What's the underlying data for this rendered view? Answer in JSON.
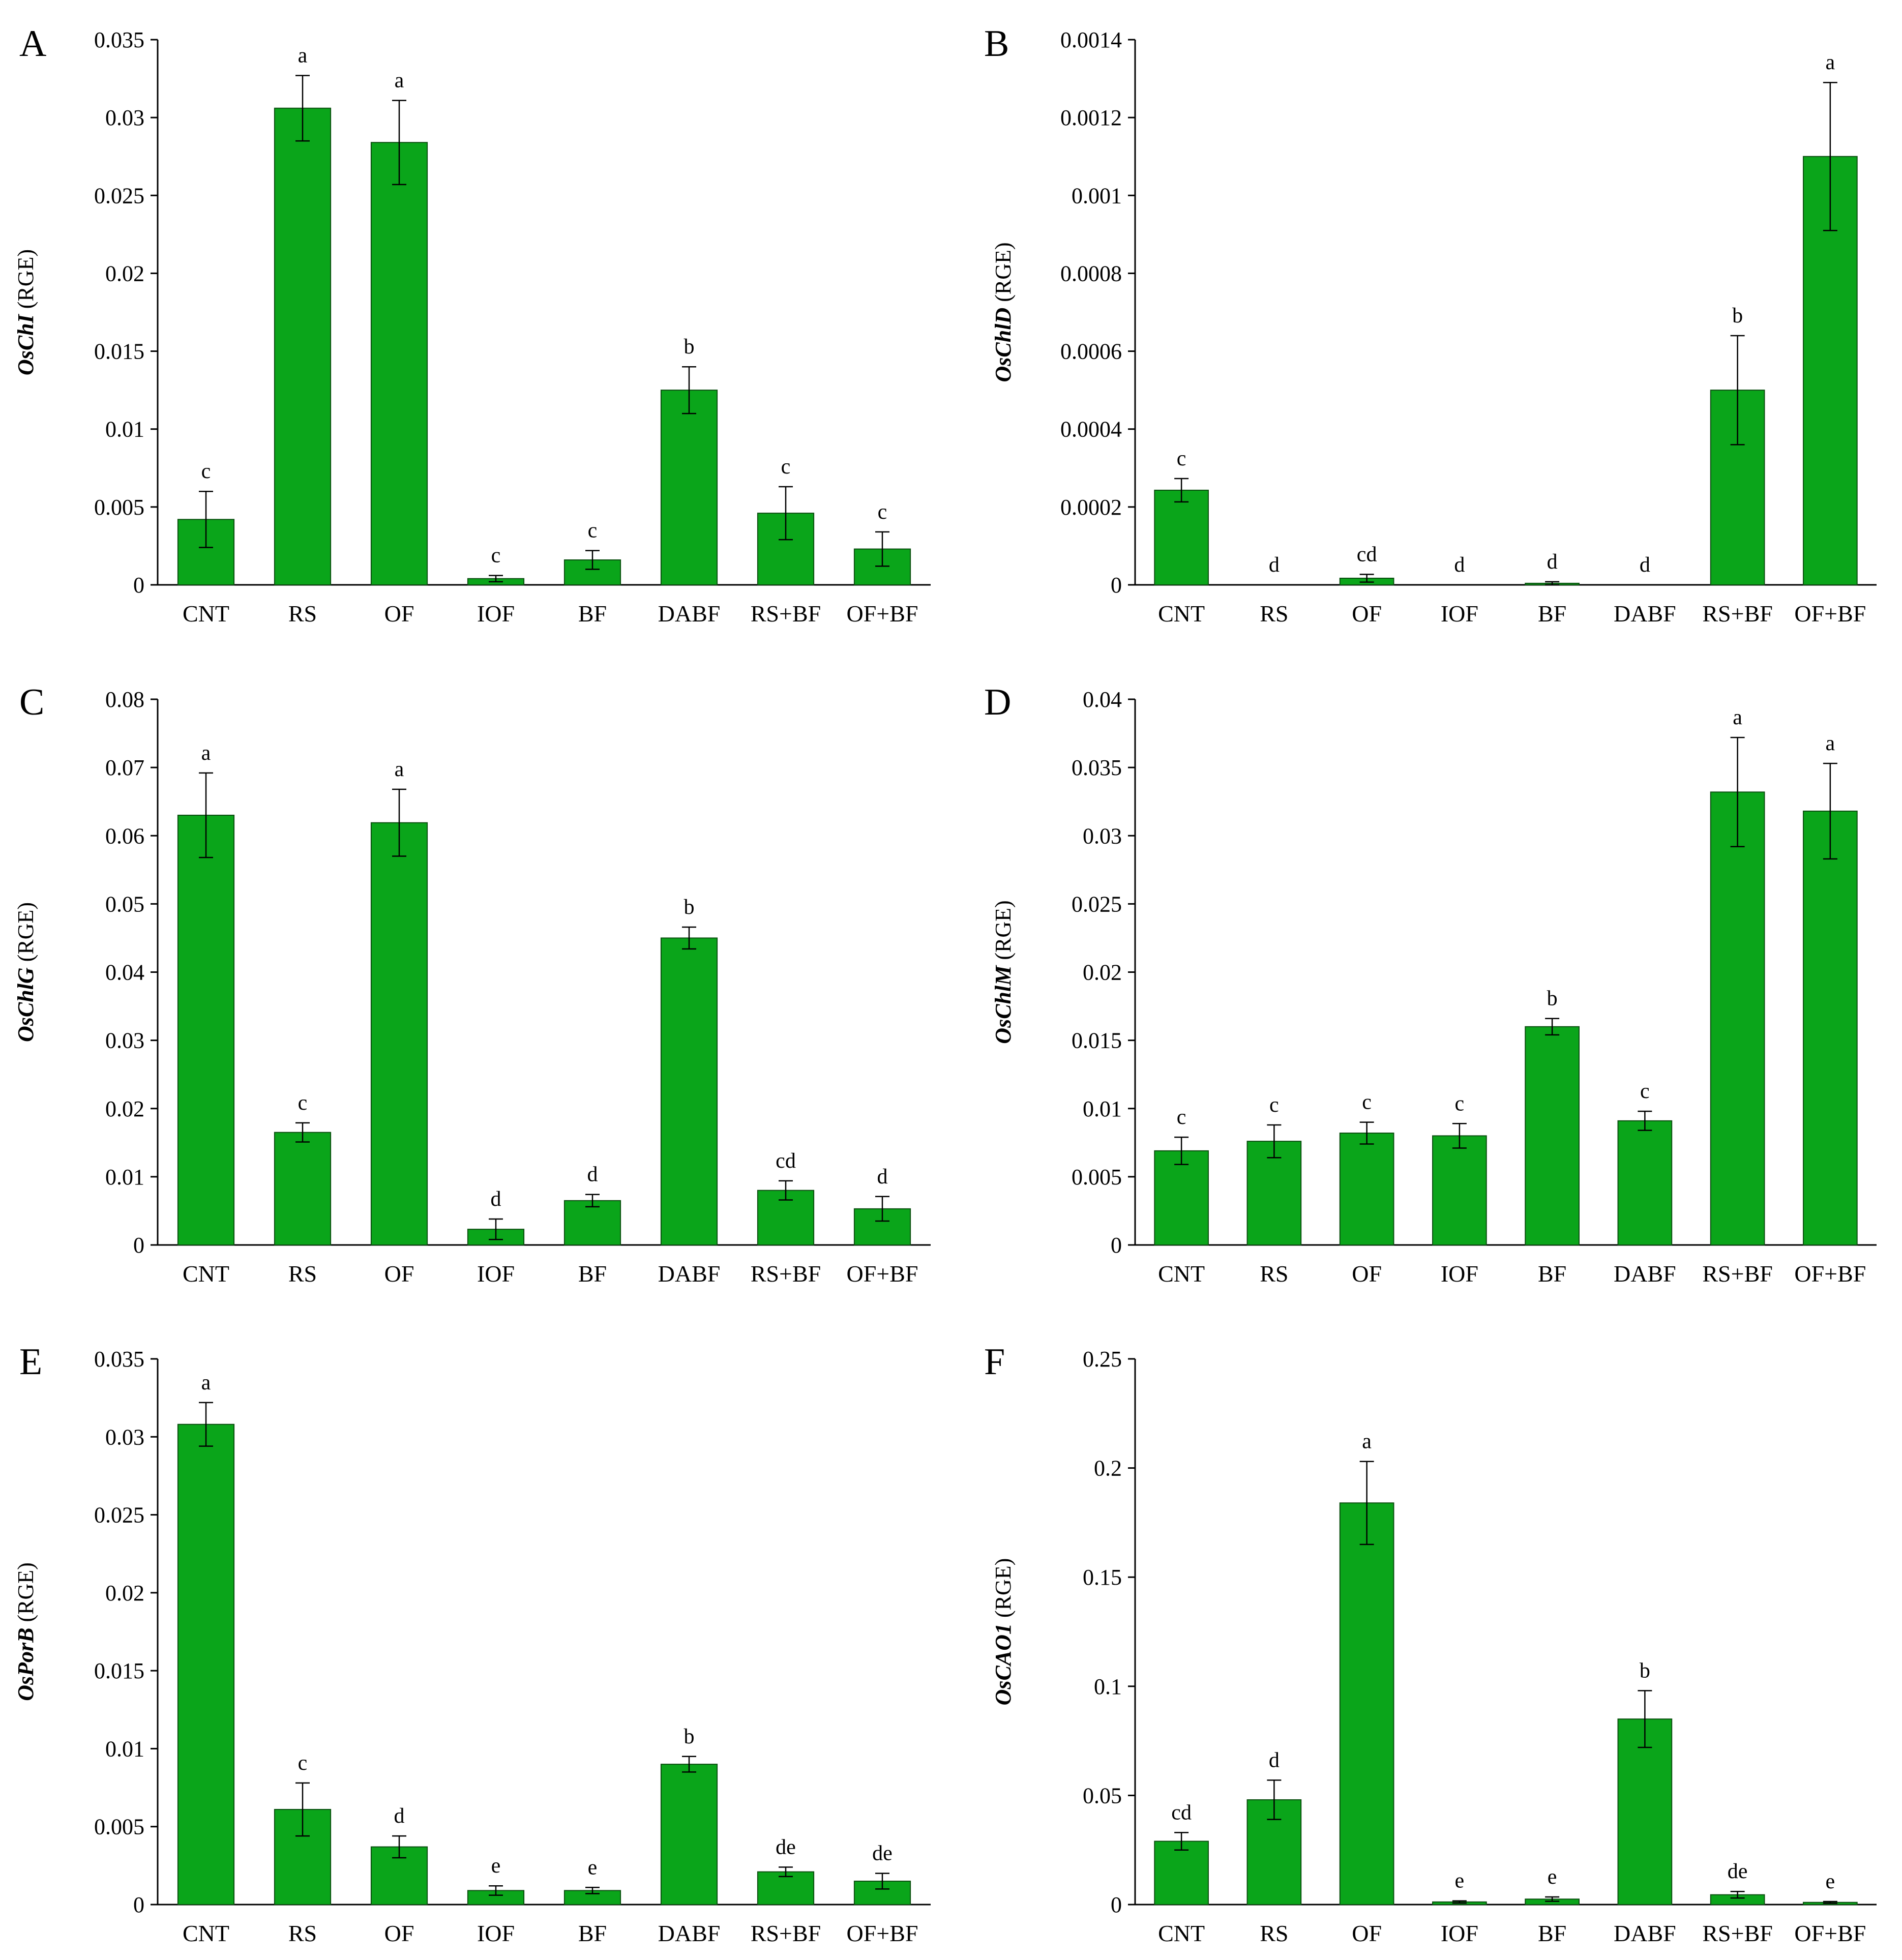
{
  "figure": {
    "bar_color": "#0aa51a",
    "bar_edge": "#0b4f10",
    "axis_color": "#000000"
  },
  "chart_data": [
    {
      "panel": "A",
      "type": "bar",
      "gene": "OsChI",
      "unit": "(RGE)",
      "categories": [
        "CNT",
        "RS",
        "OF",
        "IOF",
        "BF",
        "DABF",
        "RS+BF",
        "OF+BF"
      ],
      "values": [
        0.0042,
        0.0306,
        0.0284,
        0.0004,
        0.0016,
        0.0125,
        0.0046,
        0.0023
      ],
      "errors": [
        0.0018,
        0.0021,
        0.0027,
        0.0002,
        0.0006,
        0.0015,
        0.0017,
        0.0011
      ],
      "letters": [
        "c",
        "a",
        "a",
        "c",
        "c",
        "b",
        "c",
        "c"
      ],
      "ylim": [
        0,
        0.035
      ],
      "yticks": [
        0,
        0.005,
        0.01,
        0.015,
        0.02,
        0.025,
        0.03,
        0.035
      ],
      "ytick_labels": [
        "0",
        "0.005",
        "0.01",
        "0.015",
        "0.02",
        "0.025",
        "0.03",
        "0.035"
      ]
    },
    {
      "panel": "B",
      "type": "bar",
      "gene": "OsChlD",
      "unit": "(RGE)",
      "categories": [
        "CNT",
        "RS",
        "OF",
        "IOF",
        "BF",
        "DABF",
        "RS+BF",
        "OF+BF"
      ],
      "values": [
        0.000243,
        0,
        1.7e-05,
        0,
        4e-06,
        0,
        0.0005,
        0.0011
      ],
      "errors": [
        3e-05,
        0,
        1e-05,
        0,
        4e-06,
        0,
        0.00014,
        0.00019
      ],
      "letters": [
        "c",
        "d",
        "cd",
        "d",
        "d",
        "d",
        "b",
        "a"
      ],
      "ylim": [
        0,
        0.0014
      ],
      "yticks": [
        0,
        0.0002,
        0.0004,
        0.0006,
        0.0008,
        0.001,
        0.0012,
        0.0014
      ],
      "ytick_labels": [
        "0",
        "0.0002",
        "0.0004",
        "0.0006",
        "0.0008",
        "0.001",
        "0.0012",
        "0.0014"
      ]
    },
    {
      "panel": "C",
      "type": "bar",
      "gene": "OsChlG",
      "unit": "(RGE)",
      "categories": [
        "CNT",
        "RS",
        "OF",
        "IOF",
        "BF",
        "DABF",
        "RS+BF",
        "OF+BF"
      ],
      "values": [
        0.063,
        0.0165,
        0.0619,
        0.0023,
        0.0065,
        0.045,
        0.008,
        0.0053
      ],
      "errors": [
        0.0062,
        0.0014,
        0.0049,
        0.0015,
        0.0009,
        0.0016,
        0.0014,
        0.0018
      ],
      "letters": [
        "a",
        "c",
        "a",
        "d",
        "d",
        "b",
        "cd",
        "d"
      ],
      "ylim": [
        0,
        0.08
      ],
      "yticks": [
        0,
        0.01,
        0.02,
        0.03,
        0.04,
        0.05,
        0.06,
        0.07,
        0.08
      ],
      "ytick_labels": [
        "0",
        "0.01",
        "0.02",
        "0.03",
        "0.04",
        "0.05",
        "0.06",
        "0.07",
        "0.08"
      ]
    },
    {
      "panel": "D",
      "type": "bar",
      "gene": "OsChlM",
      "unit": "(RGE)",
      "categories": [
        "CNT",
        "RS",
        "OF",
        "IOF",
        "BF",
        "DABF",
        "RS+BF",
        "OF+BF"
      ],
      "values": [
        0.0069,
        0.0076,
        0.0082,
        0.008,
        0.016,
        0.0091,
        0.0332,
        0.0318
      ],
      "errors": [
        0.001,
        0.0012,
        0.0008,
        0.0009,
        0.0006,
        0.0007,
        0.004,
        0.0035
      ],
      "letters": [
        "c",
        "c",
        "c",
        "c",
        "b",
        "c",
        "a",
        "a"
      ],
      "ylim": [
        0,
        0.04
      ],
      "yticks": [
        0,
        0.005,
        0.01,
        0.015,
        0.02,
        0.025,
        0.03,
        0.035,
        0.04
      ],
      "ytick_labels": [
        "0",
        "0.005",
        "0.01",
        "0.015",
        "0.02",
        "0.025",
        "0.03",
        "0.035",
        "0.04"
      ]
    },
    {
      "panel": "E",
      "type": "bar",
      "gene": "OsPorB",
      "unit": "(RGE)",
      "categories": [
        "CNT",
        "RS",
        "OF",
        "IOF",
        "BF",
        "DABF",
        "RS+BF",
        "OF+BF"
      ],
      "values": [
        0.0308,
        0.0061,
        0.0037,
        0.0009,
        0.0009,
        0.009,
        0.0021,
        0.0015
      ],
      "errors": [
        0.0014,
        0.0017,
        0.0007,
        0.0003,
        0.0002,
        0.0005,
        0.0003,
        0.0005
      ],
      "letters": [
        "a",
        "c",
        "d",
        "e",
        "e",
        "b",
        "de",
        "de"
      ],
      "ylim": [
        0,
        0.035
      ],
      "yticks": [
        0,
        0.005,
        0.01,
        0.015,
        0.02,
        0.025,
        0.03,
        0.035
      ],
      "ytick_labels": [
        "0",
        "0.005",
        "0.01",
        "0.015",
        "0.02",
        "0.025",
        "0.03",
        "0.035"
      ]
    },
    {
      "panel": "F",
      "type": "bar",
      "gene": "OsCAO1",
      "unit": "(RGE)",
      "categories": [
        "CNT",
        "RS",
        "OF",
        "IOF",
        "BF",
        "DABF",
        "RS+BF",
        "OF+BF"
      ],
      "values": [
        0.029,
        0.048,
        0.184,
        0.0012,
        0.0025,
        0.085,
        0.0045,
        0.001
      ],
      "errors": [
        0.004,
        0.009,
        0.019,
        0.0005,
        0.001,
        0.013,
        0.0015,
        0.0004
      ],
      "letters": [
        "cd",
        "d",
        "a",
        "e",
        "e",
        "b",
        "de",
        "e"
      ],
      "ylim": [
        0,
        0.25
      ],
      "yticks": [
        0,
        0.05,
        0.1,
        0.15,
        0.2,
        0.25
      ],
      "ytick_labels": [
        "0",
        "0.05",
        "0.1",
        "0.15",
        "0.2",
        "0.25"
      ]
    }
  ]
}
